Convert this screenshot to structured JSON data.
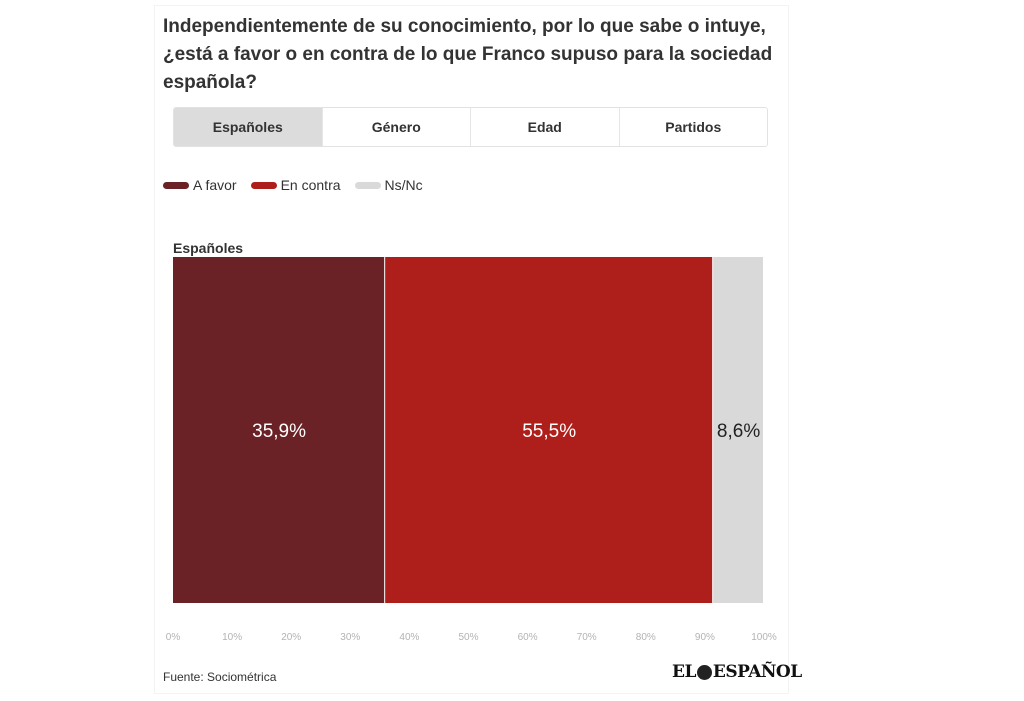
{
  "title": "Independientemente de su conocimiento, por lo que sabe o intuye, ¿está a favor o en contra de lo que Franco supuso para la sociedad española?",
  "tabs": [
    {
      "label": "Españoles",
      "active": true
    },
    {
      "label": "Género",
      "active": false
    },
    {
      "label": "Edad",
      "active": false
    },
    {
      "label": "Partidos",
      "active": false
    }
  ],
  "legend": [
    {
      "label": "A favor",
      "color": "#6b2226"
    },
    {
      "label": "En contra",
      "color": "#ae1e1a"
    },
    {
      "label": "Ns/Nc",
      "color": "#d9d9d9"
    }
  ],
  "chart_data": {
    "type": "bar",
    "orientation": "horizontal",
    "stacked": true,
    "categories": [
      "Españoles"
    ],
    "series": [
      {
        "name": "A favor",
        "values": [
          35.9
        ],
        "label": "35,9%",
        "color": "#6b2226"
      },
      {
        "name": "En contra",
        "values": [
          55.5
        ],
        "label": "55,5%",
        "color": "#ae1e1a"
      },
      {
        "name": "Ns/Nc",
        "values": [
          8.6
        ],
        "label": "8,6%",
        "color": "#d9d9d9"
      }
    ],
    "xlim": [
      0,
      100
    ],
    "x_ticks": [
      "0%",
      "10%",
      "20%",
      "30%",
      "40%",
      "50%",
      "60%",
      "70%",
      "80%",
      "90%",
      "100%"
    ],
    "grid": false,
    "legend_position": "top-left"
  },
  "source": "Fuente: Sociométrica",
  "logo": {
    "left": "EL",
    "right": "ESPAÑOL"
  }
}
